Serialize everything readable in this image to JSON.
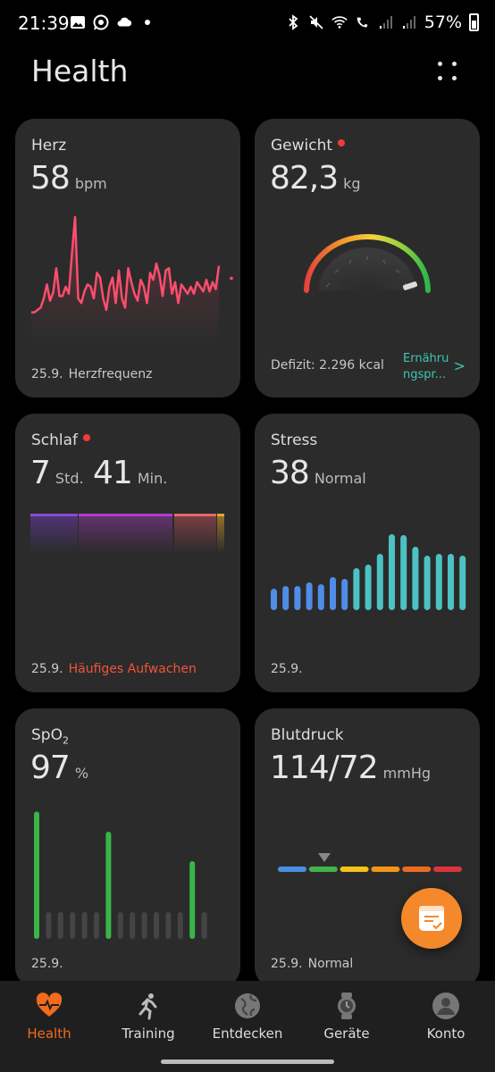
{
  "status_bar": {
    "time": "21:39",
    "battery": "57%"
  },
  "header": {
    "title": "Health"
  },
  "cards": {
    "heart": {
      "title": "Herz",
      "value": "58",
      "unit": "bpm",
      "date": "25.9.",
      "label": "Herzfrequenz",
      "chart_data": {
        "type": "line",
        "values": [
          18,
          18,
          20,
          22,
          30,
          42,
          28,
          35,
          56,
          32,
          32,
          40,
          34,
          68,
          100,
          30,
          26,
          36,
          42,
          40,
          30,
          52,
          48,
          30,
          20,
          40,
          48,
          26,
          54,
          30,
          22,
          56,
          44,
          34,
          28,
          46,
          40,
          26,
          52,
          46,
          60,
          50,
          32,
          54,
          56,
          34,
          44,
          26,
          42,
          38,
          34,
          40,
          34,
          44,
          40,
          36,
          46,
          36,
          44,
          38,
          58
        ]
      }
    },
    "weight": {
      "title": "Gewicht",
      "value": "82,3",
      "unit": "kg",
      "deficit": "Defizit: 2.296 kcal",
      "link": "Ernährungspr..."
    },
    "sleep": {
      "title": "Schlaf",
      "hours": "7",
      "hours_unit": "Std.",
      "minutes": "41",
      "minutes_unit": "Min.",
      "date": "25.9.",
      "warning": "Häufiges Aufwachen",
      "colors": {
        "deep": "#7b3fc8",
        "light": "#b13cc9",
        "rem": "#e05a66",
        "awake": "#e7a42e"
      }
    },
    "stress": {
      "title": "Stress",
      "value": "38",
      "label": "Normal",
      "date": "25.9.",
      "chart_data": {
        "type": "bar",
        "values": [
          24,
          27,
          27,
          31,
          29,
          37,
          35,
          47,
          51,
          63,
          85,
          84,
          71,
          61,
          63,
          63,
          61
        ]
      }
    },
    "spo2": {
      "title": "SpO",
      "sub": "2",
      "value": "97",
      "unit": "%",
      "date": "25.9.",
      "chart_data": {
        "type": "bar",
        "values": [
          95,
          0,
          0,
          0,
          0,
          0,
          80,
          0,
          0,
          0,
          0,
          0,
          0,
          58,
          0
        ]
      }
    },
    "bp": {
      "title": "Blutdruck",
      "value": "114/72",
      "unit": "mmHg",
      "date": "25.9.",
      "label": "Normal",
      "scale_colors": [
        "#4a90e2",
        "#42b34c",
        "#f2c418",
        "#f29418",
        "#ee6a23",
        "#d9353b"
      ]
    }
  },
  "nav": [
    {
      "label": "Health",
      "icon": "heart-icon",
      "active": true
    },
    {
      "label": "Training",
      "icon": "runner-icon",
      "active": false
    },
    {
      "label": "Entdecken",
      "icon": "globe-icon",
      "active": false
    },
    {
      "label": "Geräte",
      "icon": "watch-icon",
      "active": false
    },
    {
      "label": "Konto",
      "icon": "account-icon",
      "active": false
    }
  ]
}
